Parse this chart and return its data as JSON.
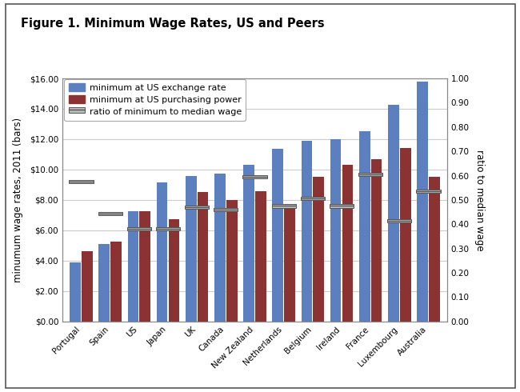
{
  "title": "Figure 1. Minimum Wage Rates, US and Peers",
  "ylabel_left": "minumum wage rates, 2011 (bars)",
  "ylabel_right": "ratio to median wage",
  "categories": [
    "Portugal",
    "Spain",
    "US",
    "Japan",
    "UK",
    "Canada",
    "New Zealand",
    "Netherlands",
    "Belgium",
    "Ireland",
    "France",
    "Luxembourg",
    "Australia"
  ],
  "exchange_rate": [
    3.9,
    5.1,
    7.25,
    9.15,
    9.6,
    9.75,
    10.3,
    11.35,
    11.9,
    12.0,
    12.55,
    14.25,
    15.8
  ],
  "purchasing_power": [
    4.65,
    5.25,
    7.25,
    6.75,
    8.5,
    8.0,
    8.6,
    7.6,
    9.5,
    10.3,
    10.7,
    11.4,
    9.5
  ],
  "ratio": [
    0.575,
    0.445,
    0.38,
    0.38,
    0.47,
    0.46,
    0.595,
    0.475,
    0.505,
    0.475,
    0.605,
    0.415,
    0.535
  ],
  "blue_color": "#5B7FBF",
  "red_color": "#8B3333",
  "ratio_color": "#BBBBBB",
  "ratio_line_color": "#555555",
  "plot_bg_color": "#FFFFFF",
  "fig_bg_color": "#FFFFFF",
  "border_color": "#555555",
  "ylim_left": [
    0,
    16
  ],
  "ylim_right": [
    0,
    1.0
  ],
  "yticks_left": [
    0,
    2,
    4,
    6,
    8,
    10,
    12,
    14,
    16
  ],
  "yticks_right": [
    0.0,
    0.1,
    0.2,
    0.3,
    0.4,
    0.5,
    0.6,
    0.7,
    0.8,
    0.9,
    1.0
  ],
  "legend_labels": [
    "minimum at US exchange rate",
    "minimum at US purchasing power",
    "ratio of minimum to median wage"
  ],
  "bar_width": 0.38,
  "bar_gap": 0.03
}
